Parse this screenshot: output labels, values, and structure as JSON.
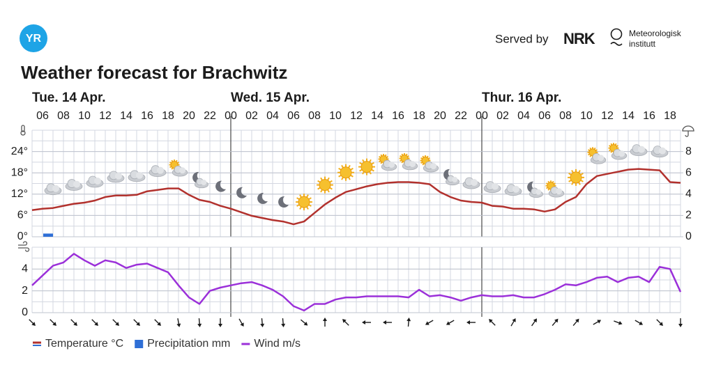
{
  "header": {
    "logo": "YR",
    "served_by": "Served by",
    "partner_1": "NRK",
    "partner_2_line_1": "Meteorologisk",
    "partner_2_line_2": "institutt"
  },
  "chart_data": {
    "type": "line",
    "title": "Weather forecast for Brachwitz",
    "days": [
      "Tue. 14 Apr.",
      "Wed. 15 Apr.",
      "Thur. 16 Apr."
    ],
    "categories": [
      null,
      "06",
      null,
      "08",
      null,
      "10",
      null,
      "12",
      null,
      "14",
      null,
      "16",
      null,
      "18",
      null,
      "20",
      null,
      "22",
      null,
      "00",
      null,
      "02",
      null,
      "04",
      null,
      "06",
      null,
      "08",
      null,
      "10",
      null,
      "12",
      null,
      "14",
      null,
      "16",
      null,
      "18",
      null,
      "20",
      null,
      "22",
      null,
      "00",
      null,
      "02",
      null,
      "04",
      null,
      "06",
      null,
      "08",
      null,
      "10",
      null,
      "12",
      null,
      "14",
      null,
      "16",
      null,
      "18",
      null
    ],
    "ylim": [
      0,
      30
    ],
    "yticks": [
      {
        "value": 0,
        "label": "0°"
      },
      {
        "value": 6,
        "label": "6°"
      },
      {
        "value": 12,
        "label": "12°"
      },
      {
        "value": 18,
        "label": "18°"
      },
      {
        "value": 24,
        "label": "24°"
      }
    ],
    "y2lim": [
      0,
      10
    ],
    "y2ticks": [
      0,
      2,
      4,
      6,
      8
    ],
    "y3lim": [
      0,
      6
    ],
    "y3ticks": [
      0,
      2,
      4
    ],
    "grid": true,
    "series": [
      {
        "name": "Temperature °C",
        "color": "#b2312d",
        "axis": "y",
        "values": [
          7.5,
          7.9,
          8.1,
          8.7,
          9.3,
          9.6,
          10.2,
          11.2,
          11.6,
          11.6,
          11.8,
          12.8,
          13.2,
          13.6,
          13.6,
          11.8,
          10.4,
          9.8,
          8.7,
          7.9,
          6.9,
          5.9,
          5.3,
          4.7,
          4.3,
          3.5,
          4.3,
          6.7,
          9.1,
          11.0,
          12.6,
          13.4,
          14.2,
          14.8,
          15.2,
          15.4,
          15.4,
          15.2,
          14.8,
          12.6,
          11.2,
          10.2,
          9.8,
          9.6,
          8.7,
          8.5,
          7.9,
          7.9,
          7.7,
          7.1,
          7.7,
          9.8,
          11.2,
          14.8,
          17.1,
          17.7,
          18.3,
          18.9,
          19.1,
          18.9,
          18.7,
          15.4,
          15.2
        ]
      },
      {
        "name": "Precipitation mm",
        "color": "#2f6fd6",
        "axis": "y2",
        "values": [
          0,
          0.3,
          0,
          0,
          0,
          0,
          0,
          0,
          0,
          0,
          0,
          0,
          0,
          0,
          0,
          0,
          0,
          0,
          0,
          0,
          0,
          0,
          0,
          0,
          0,
          0,
          0,
          0,
          0,
          0,
          0,
          0,
          0,
          0,
          0,
          0,
          0,
          0,
          0,
          0,
          0,
          0,
          0,
          0,
          0,
          0,
          0,
          0,
          0,
          0,
          0,
          0,
          0,
          0,
          0,
          0,
          0,
          0,
          0,
          0,
          0,
          0,
          0
        ]
      },
      {
        "name": "Wind m/s",
        "color": "#9b30d9",
        "axis": "y3",
        "values": [
          2.5,
          3.4,
          4.3,
          4.6,
          5.4,
          4.8,
          4.3,
          4.8,
          4.6,
          4.1,
          4.4,
          4.5,
          4.1,
          3.7,
          2.5,
          1.4,
          0.8,
          2.0,
          2.3,
          2.5,
          2.7,
          2.8,
          2.5,
          2.1,
          1.5,
          0.6,
          0.2,
          0.8,
          0.8,
          1.2,
          1.4,
          1.4,
          1.5,
          1.5,
          1.5,
          1.5,
          1.4,
          2.1,
          1.5,
          1.6,
          1.4,
          1.1,
          1.4,
          1.6,
          1.5,
          1.5,
          1.6,
          1.4,
          1.4,
          1.7,
          2.1,
          2.6,
          2.5,
          2.8,
          3.2,
          3.3,
          2.8,
          3.2,
          3.3,
          2.8,
          4.2,
          4.0,
          1.9
        ]
      }
    ]
  }
}
